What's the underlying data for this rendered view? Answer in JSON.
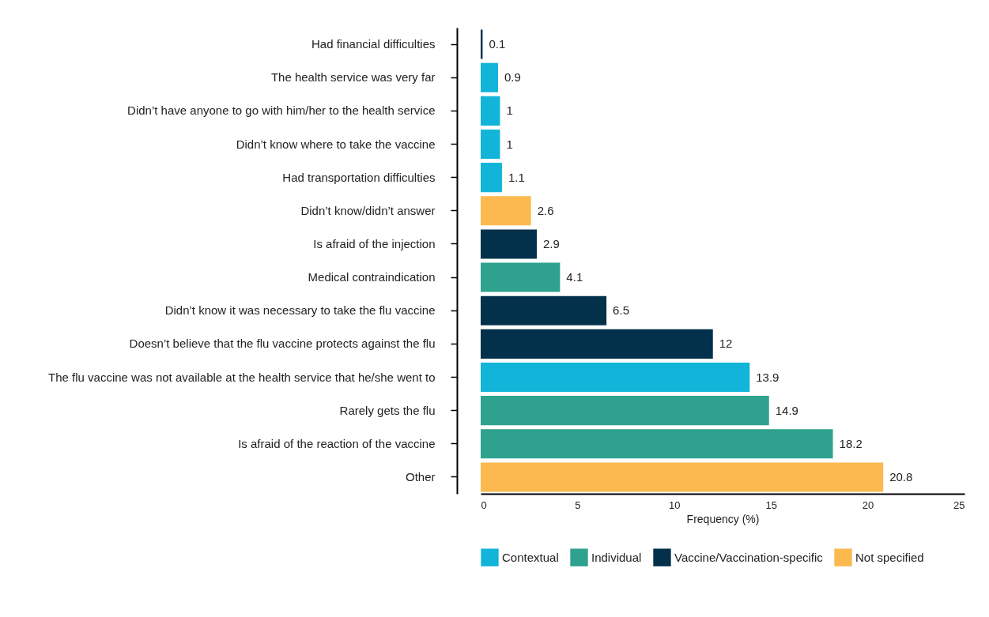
{
  "chart_data": {
    "type": "bar",
    "orientation": "horizontal",
    "data_labels": true,
    "legend": "bottom",
    "grid": false,
    "xlabel": "Frequency (%)",
    "xlim": [
      0,
      25
    ],
    "xticks": [
      0,
      5,
      10,
      15,
      20,
      25
    ],
    "categories": [
      "Had financial difficulties",
      "The health service was very far",
      "Didn’t have anyone to go with him/her to the health service",
      "Didn’t know where to take the vaccine",
      "Had transportation difficulties",
      "Didn’t know/didn’t answer",
      "Is afraid of the injection",
      "Medical contraindication",
      "Didn’t know it was necessary to take the flu vaccine",
      "Doesn’t believe that the flu vaccine protects against the flu",
      "The flu vaccine was not available at the health service that he/she went to",
      "Rarely gets the flu",
      "Is afraid of the reaction of the vaccine",
      "Other"
    ],
    "series": [
      {
        "name": "Contextual",
        "color": "#12b5d9",
        "values": [
          null,
          0.9,
          1,
          1,
          1.1,
          null,
          null,
          null,
          null,
          null,
          13.9,
          null,
          null,
          null
        ]
      },
      {
        "name": "Individual",
        "color": "#2ea28e",
        "values": [
          null,
          null,
          null,
          null,
          null,
          null,
          null,
          4.1,
          null,
          null,
          null,
          14.9,
          18.2,
          null
        ]
      },
      {
        "name": "Vaccine/Vaccination-specific",
        "color": "#03304a",
        "values": [
          0.1,
          null,
          null,
          null,
          null,
          null,
          2.9,
          null,
          6.5,
          12,
          null,
          null,
          null,
          null
        ]
      },
      {
        "name": "Not specified",
        "color": "#fbb950",
        "values": [
          null,
          null,
          null,
          null,
          null,
          2.6,
          null,
          null,
          null,
          null,
          null,
          null,
          null,
          20.8
        ]
      }
    ]
  }
}
